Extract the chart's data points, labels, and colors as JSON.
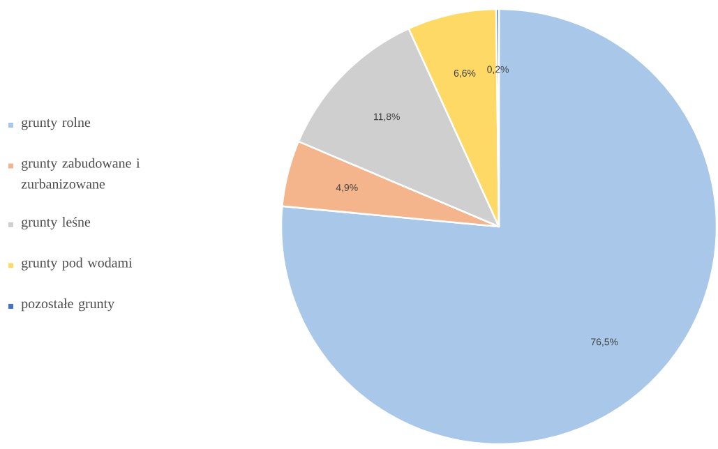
{
  "chart_data": {
    "type": "pie",
    "categories": [
      "grunty rolne",
      "grunty zabudowane i zurbanizowane",
      "grunty leśne",
      "grunty pod wodami",
      "pozostałe grunty"
    ],
    "values": [
      76.5,
      4.9,
      11.8,
      6.6,
      0.2
    ],
    "value_labels": [
      "76,5%",
      "4,9%",
      "11,8%",
      "6,6%",
      "0,2%"
    ],
    "colors": [
      "#a9c8e9",
      "#f4b48c",
      "#cfcfcf",
      "#ffd966",
      "#4472c4"
    ],
    "legend": "left"
  }
}
